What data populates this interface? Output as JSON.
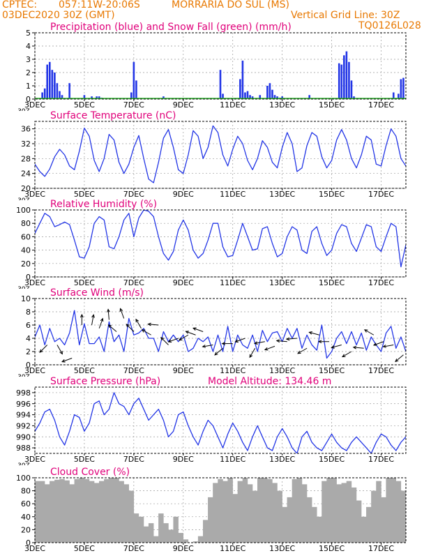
{
  "header": {
    "agency": "CPTEC:",
    "coords": "057:11W-20:06S",
    "location": "MORRARIA DO SUL (MS)",
    "run": "03DEC2020 30Z (GMT)",
    "grid_note": "Vertical Grid Line: 30Z",
    "model_code": "TQ0126L028"
  },
  "colors": {
    "header_text": "#e87800",
    "panel_title": "#e0007a",
    "line": "#2235e6",
    "snow": "#22aa22",
    "cloud": "#aaaaaa",
    "wind_arrow": "#000000"
  },
  "x_axis": {
    "start_day": 3,
    "end_day": 18,
    "tick_labels": [
      {
        "day": 3,
        "label": "3DEC"
      },
      {
        "day": 5,
        "label": "5DEC"
      },
      {
        "day": 7,
        "label": "7DEC"
      },
      {
        "day": 9,
        "label": "9DEC"
      },
      {
        "day": 11,
        "label": "11DEC"
      },
      {
        "day": 13,
        "label": "13DEC"
      },
      {
        "day": 15,
        "label": "15DEC"
      },
      {
        "day": 17,
        "label": "17DEC"
      }
    ],
    "partial_label": "30Z"
  },
  "chart_data": [
    {
      "id": "precip",
      "type": "bar",
      "title": "Precipitation (blue) and Snow Fall (green) (mm/h)",
      "ylim": [
        0,
        5
      ],
      "yticks": [
        0,
        1,
        2,
        3,
        4,
        5
      ],
      "grid": true,
      "x": [
        3.3,
        3.4,
        3.5,
        3.6,
        3.7,
        3.8,
        3.9,
        4.0,
        4.1,
        4.4,
        5.0,
        5.3,
        5.5,
        5.6,
        5.7,
        6.9,
        7.0,
        7.1,
        8.2,
        10.5,
        10.6,
        11.3,
        11.4,
        11.5,
        11.6,
        11.7,
        11.8,
        12.1,
        12.4,
        12.5,
        12.6,
        12.7,
        12.8,
        12.9,
        13.0,
        14.1,
        15.3,
        15.4,
        15.5,
        15.6,
        15.7,
        15.8,
        15.9,
        17.5,
        17.7,
        17.8,
        17.9
      ],
      "values": [
        0.5,
        0.8,
        2.6,
        2.8,
        2.2,
        2.0,
        1.2,
        0.6,
        0.3,
        1.2,
        0.3,
        0.2,
        0.2,
        0.2,
        0.1,
        0.5,
        2.8,
        1.4,
        0.2,
        2.2,
        0.4,
        1.5,
        2.9,
        0.5,
        0.6,
        0.3,
        0.2,
        0.3,
        1.0,
        1.2,
        0.7,
        0.3,
        0.2,
        0.1,
        0.2,
        0.3,
        2.7,
        2.6,
        3.3,
        3.6,
        2.8,
        1.4,
        0.2,
        0.5,
        0.4,
        1.5,
        1.6
      ],
      "snow": 0
    },
    {
      "id": "temp",
      "type": "line",
      "title": "Surface Temperature (nC)",
      "ylim": [
        20,
        38
      ],
      "yticks": [
        20,
        24,
        28,
        32,
        36
      ],
      "grid": true,
      "x": [
        3.0,
        3.2,
        3.4,
        3.6,
        3.8,
        4.0,
        4.2,
        4.4,
        4.6,
        4.8,
        5.0,
        5.2,
        5.4,
        5.6,
        5.8,
        6.0,
        6.2,
        6.4,
        6.6,
        6.8,
        7.0,
        7.2,
        7.4,
        7.6,
        7.8,
        8.0,
        8.2,
        8.4,
        8.6,
        8.8,
        9.0,
        9.2,
        9.4,
        9.6,
        9.8,
        10.0,
        10.2,
        10.4,
        10.6,
        10.8,
        11.0,
        11.2,
        11.4,
        11.6,
        11.8,
        12.0,
        12.2,
        12.4,
        12.6,
        12.8,
        13.0,
        13.2,
        13.4,
        13.6,
        13.8,
        14.0,
        14.2,
        14.4,
        14.6,
        14.8,
        15.0,
        15.2,
        15.4,
        15.6,
        15.8,
        16.0,
        16.2,
        16.4,
        16.6,
        16.8,
        17.0,
        17.2,
        17.4,
        17.6,
        17.8,
        18.0
      ],
      "values": [
        26.5,
        24.5,
        23.2,
        25.2,
        28.5,
        30.5,
        29.0,
        26.0,
        25.0,
        30.0,
        36.2,
        34.0,
        27.5,
        24.5,
        28.0,
        34.5,
        33.0,
        27.0,
        24.0,
        26.5,
        31.0,
        34.2,
        28.0,
        22.5,
        21.5,
        27.0,
        33.5,
        35.8,
        31.0,
        25.0,
        24.0,
        29.0,
        35.5,
        34.0,
        28.0,
        31.0,
        36.8,
        35.0,
        29.0,
        26.0,
        30.5,
        34.0,
        32.0,
        27.5,
        25.0,
        28.0,
        32.8,
        31.0,
        27.0,
        25.5,
        31.0,
        35.0,
        32.0,
        24.5,
        25.5,
        31.5,
        35.0,
        34.0,
        28.5,
        25.5,
        27.5,
        33.0,
        35.8,
        33.0,
        28.0,
        25.5,
        29.0,
        34.0,
        33.0,
        26.5,
        26.0,
        31.5,
        36.0,
        34.0,
        28.0,
        26.0
      ]
    },
    {
      "id": "rh",
      "type": "line",
      "title": "Relative Humidity (%)",
      "ylim": [
        0,
        100
      ],
      "yticks": [
        0,
        20,
        40,
        60,
        80,
        100
      ],
      "grid": true,
      "x": [
        3.0,
        3.2,
        3.4,
        3.6,
        3.8,
        4.0,
        4.2,
        4.4,
        4.6,
        4.8,
        5.0,
        5.2,
        5.4,
        5.6,
        5.8,
        6.0,
        6.2,
        6.4,
        6.6,
        6.8,
        7.0,
        7.2,
        7.4,
        7.6,
        7.8,
        8.0,
        8.2,
        8.4,
        8.6,
        8.8,
        9.0,
        9.2,
        9.4,
        9.6,
        9.8,
        10.0,
        10.2,
        10.4,
        10.6,
        10.8,
        11.0,
        11.2,
        11.4,
        11.6,
        11.8,
        12.0,
        12.2,
        12.4,
        12.6,
        12.8,
        13.0,
        13.2,
        13.4,
        13.6,
        13.8,
        14.0,
        14.2,
        14.4,
        14.6,
        14.8,
        15.0,
        15.2,
        15.4,
        15.6,
        15.8,
        16.0,
        16.2,
        16.4,
        16.6,
        16.8,
        17.0,
        17.2,
        17.4,
        17.6,
        17.8,
        18.0
      ],
      "values": [
        65,
        80,
        95,
        90,
        75,
        78,
        82,
        78,
        55,
        30,
        28,
        45,
        80,
        90,
        85,
        45,
        42,
        60,
        85,
        95,
        60,
        88,
        100,
        98,
        90,
        60,
        35,
        25,
        38,
        70,
        85,
        70,
        40,
        28,
        35,
        55,
        80,
        80,
        45,
        30,
        32,
        55,
        80,
        60,
        40,
        42,
        72,
        75,
        50,
        30,
        35,
        60,
        75,
        70,
        40,
        35,
        68,
        75,
        50,
        32,
        40,
        65,
        78,
        75,
        50,
        38,
        58,
        78,
        75,
        45,
        38,
        60,
        80,
        75,
        15,
        48
      ]
    },
    {
      "id": "wind",
      "type": "line",
      "title": "Surface Wind (m/s)",
      "ylim": [
        0,
        10
      ],
      "yticks": [
        0,
        2,
        4,
        6,
        8,
        10
      ],
      "grid": true,
      "x": [
        3.0,
        3.2,
        3.4,
        3.6,
        3.8,
        4.0,
        4.2,
        4.4,
        4.6,
        4.8,
        5.0,
        5.2,
        5.4,
        5.6,
        5.8,
        6.0,
        6.2,
        6.4,
        6.6,
        6.8,
        7.0,
        7.2,
        7.4,
        7.6,
        7.8,
        8.0,
        8.2,
        8.4,
        8.6,
        8.8,
        9.0,
        9.2,
        9.4,
        9.6,
        9.8,
        10.0,
        10.2,
        10.4,
        10.6,
        10.8,
        11.0,
        11.2,
        11.4,
        11.6,
        11.8,
        12.0,
        12.2,
        12.4,
        12.6,
        12.8,
        13.0,
        13.2,
        13.4,
        13.6,
        13.8,
        14.0,
        14.2,
        14.4,
        14.6,
        14.8,
        15.0,
        15.2,
        15.4,
        15.6,
        15.8,
        16.0,
        16.2,
        16.4,
        16.6,
        16.8,
        17.0,
        17.2,
        17.4,
        17.6,
        17.8,
        18.0
      ],
      "values": [
        4.2,
        6.0,
        3.0,
        5.5,
        3.5,
        4.0,
        3.0,
        4.8,
        8.2,
        3.0,
        6.2,
        3.2,
        3.2,
        4.2,
        2.0,
        6.5,
        3.5,
        4.5,
        2.0,
        7.0,
        4.5,
        4.8,
        5.5,
        4.0,
        4.0,
        2.0,
        5.0,
        3.5,
        4.5,
        3.5,
        4.5,
        2.0,
        2.5,
        4.0,
        3.5,
        4.2,
        2.0,
        4.5,
        2.0,
        5.8,
        2.0,
        4.5,
        3.0,
        2.5,
        4.5,
        2.0,
        5.2,
        3.5,
        4.8,
        5.0,
        3.5,
        5.5,
        4.0,
        5.5,
        2.5,
        4.5,
        3.0,
        2.2,
        6.0,
        1.0,
        2.0,
        4.0,
        5.0,
        3.2,
        5.0,
        3.0,
        4.8,
        2.2,
        4.2,
        3.0,
        2.0,
        4.8,
        5.8,
        2.5,
        4.2,
        2.0
      ],
      "arrows": {
        "x": [
          3.5,
          3.9,
          4.5,
          4.9,
          5.3,
          5.6,
          6.0,
          6.3,
          6.6,
          7.0,
          7.3,
          7.7,
          8.0,
          8.4,
          8.8,
          9.2,
          9.5,
          9.8,
          10.2,
          10.6,
          11.0,
          11.5,
          11.9,
          12.3,
          12.7,
          13.2,
          13.6,
          14.0,
          14.5,
          14.9,
          15.4,
          15.8,
          16.3,
          16.7,
          17.1,
          17.5,
          17.9
        ],
        "y": [
          3.0,
          3.0,
          1.0,
          6.0,
          6.0,
          5.5,
          6.8,
          5.0,
          7.0,
          5.0,
          5.5,
          4.5,
          6.0,
          3.0,
          4.0,
          4.5,
          4.5,
          5.0,
          3.0,
          2.5,
          3.2,
          4.0,
          2.5,
          3.5,
          2.8,
          3.5,
          4.0,
          2.5,
          4.5,
          3.5,
          3.0,
          2.0,
          2.5,
          4.5,
          3.5,
          3.0,
          1.5
        ],
        "dir": [
          225,
          300,
          200,
          90,
          80,
          70,
          95,
          140,
          110,
          135,
          120,
          150,
          175,
          135,
          200,
          210,
          160,
          160,
          190,
          220,
          180,
          200,
          240,
          190,
          200,
          175,
          185,
          210,
          165,
          180,
          195,
          210,
          175,
          150,
          200,
          190,
          220
        ]
      }
    },
    {
      "id": "pres",
      "type": "line",
      "title": "Surface Pressure (hPa)",
      "extra_label": "Model Altitude: 134.46 m",
      "ylim": [
        987,
        999
      ],
      "yticks": [
        988,
        990,
        992,
        994,
        996,
        998
      ],
      "grid": true,
      "x": [
        3.0,
        3.2,
        3.4,
        3.6,
        3.8,
        4.0,
        4.2,
        4.4,
        4.6,
        4.8,
        5.0,
        5.2,
        5.4,
        5.6,
        5.8,
        6.0,
        6.2,
        6.4,
        6.6,
        6.8,
        7.0,
        7.2,
        7.4,
        7.6,
        7.8,
        8.0,
        8.2,
        8.4,
        8.6,
        8.8,
        9.0,
        9.2,
        9.4,
        9.6,
        9.8,
        10.0,
        10.2,
        10.4,
        10.6,
        10.8,
        11.0,
        11.2,
        11.4,
        11.6,
        11.8,
        12.0,
        12.2,
        12.4,
        12.6,
        12.8,
        13.0,
        13.2,
        13.4,
        13.6,
        13.8,
        14.0,
        14.2,
        14.4,
        14.6,
        14.8,
        15.0,
        15.2,
        15.4,
        15.6,
        15.8,
        16.0,
        16.2,
        16.4,
        16.6,
        16.8,
        17.0,
        17.2,
        17.4,
        17.6,
        17.8,
        18.0
      ],
      "values": [
        991,
        992.5,
        994.5,
        995,
        993,
        990,
        988.5,
        991,
        994,
        993.5,
        991,
        992.5,
        996,
        996.5,
        994,
        995,
        998,
        996,
        995.5,
        994,
        996,
        997,
        995,
        993,
        994,
        995,
        993,
        990,
        991,
        994,
        994.5,
        992,
        990,
        988.5,
        991,
        993,
        992,
        990,
        988,
        990.5,
        992.5,
        991,
        989,
        987.5,
        990,
        992,
        990,
        988,
        987.5,
        990,
        991.5,
        990,
        988,
        987,
        990,
        991,
        989,
        988,
        987.5,
        989,
        990.5,
        989,
        988,
        987.5,
        989,
        990,
        989,
        988,
        987,
        989,
        990.5,
        990,
        988.5,
        987.5,
        989,
        990
      ]
    },
    {
      "id": "cloud",
      "type": "bar",
      "title": "Cloud Cover (%)",
      "ylim": [
        0,
        100
      ],
      "yticks": [
        0,
        20,
        40,
        60,
        80,
        100
      ],
      "grid": true,
      "x": [
        3.1,
        3.3,
        3.5,
        3.7,
        3.9,
        4.1,
        4.3,
        4.5,
        4.7,
        4.9,
        5.1,
        5.3,
        5.5,
        5.7,
        5.9,
        6.1,
        6.3,
        6.5,
        6.7,
        6.9,
        7.1,
        7.3,
        7.5,
        7.7,
        7.9,
        8.1,
        8.3,
        8.5,
        8.7,
        8.9,
        9.1,
        9.3,
        9.5,
        9.7,
        9.9,
        10.1,
        10.3,
        10.5,
        10.7,
        10.9,
        11.1,
        11.3,
        11.5,
        11.7,
        11.9,
        12.1,
        12.3,
        12.5,
        12.7,
        12.9,
        13.1,
        13.3,
        13.5,
        13.7,
        13.9,
        14.1,
        14.3,
        14.5,
        14.7,
        14.9,
        15.1,
        15.3,
        15.5,
        15.7,
        15.9,
        16.1,
        16.3,
        16.5,
        16.7,
        16.9,
        17.1,
        17.3,
        17.5,
        17.7,
        17.9
      ],
      "values": [
        95,
        95,
        90,
        95,
        97,
        98,
        96,
        90,
        98,
        100,
        98,
        95,
        92,
        95,
        98,
        100,
        100,
        95,
        90,
        80,
        45,
        40,
        25,
        30,
        10,
        45,
        30,
        20,
        40,
        15,
        5,
        0,
        2,
        10,
        35,
        70,
        92,
        98,
        95,
        100,
        75,
        95,
        100,
        90,
        80,
        100,
        100,
        98,
        92,
        80,
        55,
        70,
        98,
        100,
        90,
        70,
        55,
        40,
        95,
        100,
        100,
        90,
        92,
        95,
        85,
        65,
        40,
        55,
        80,
        95,
        70,
        100,
        100,
        95,
        80
      ]
    }
  ]
}
